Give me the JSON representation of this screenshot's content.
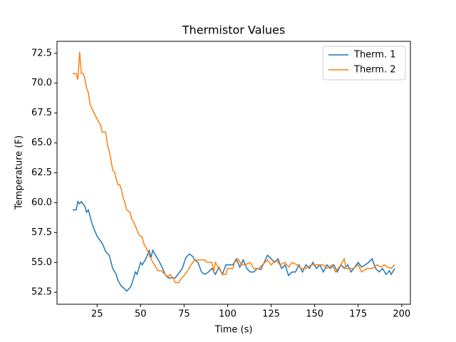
{
  "chart_data": {
    "type": "line",
    "title": "Thermistor Values",
    "x_label": "Time (s)",
    "y_label": "Temperature (F)",
    "xlim": [
      2,
      205
    ],
    "ylim": [
      51.5,
      73.5
    ],
    "xticks": [
      25,
      50,
      75,
      100,
      125,
      150,
      175,
      200
    ],
    "yticks": [
      52.5,
      {
        "value": 55,
        "label": "55.0"
      },
      57.5,
      {
        "value": 60,
        "label": "60.0"
      },
      62.5,
      {
        "value": 65,
        "label": "65.0"
      },
      67.5,
      {
        "value": 70,
        "label": "70.0"
      },
      72.5
    ],
    "grid": false,
    "legend": "upper right",
    "series": [
      {
        "name": "Therm. 1",
        "color": "#1f77b4",
        "x": [
          11,
          13,
          14,
          15,
          16,
          18,
          19,
          20,
          22,
          23,
          25,
          28,
          30,
          32,
          34,
          36,
          37,
          39,
          40,
          42,
          44,
          45,
          47,
          48,
          50,
          51,
          53,
          55,
          56,
          57,
          59,
          61,
          63,
          64,
          66,
          70,
          72,
          74,
          76,
          78,
          80,
          81,
          83,
          85,
          87,
          89,
          91,
          93,
          95,
          97,
          99,
          103,
          105,
          107,
          109,
          111,
          113,
          115,
          117,
          119,
          121,
          123,
          125,
          127,
          129,
          131,
          133,
          135,
          137,
          139,
          141,
          143,
          145,
          147,
          149,
          151,
          153,
          155,
          157,
          159,
          161,
          163,
          165,
          167,
          169,
          171,
          173,
          175,
          177,
          179,
          181,
          183,
          185,
          187,
          189,
          191,
          193,
          194,
          196
        ],
        "values": [
          59.4,
          59.4,
          60.1,
          59.9,
          60.1,
          59.7,
          59.2,
          59.4,
          58.3,
          57.9,
          57.2,
          56.6,
          55.9,
          55.6,
          54.5,
          54.0,
          53.5,
          53.0,
          52.9,
          52.6,
          52.9,
          53.2,
          54.2,
          54.0,
          55.0,
          54.8,
          55.3,
          56.0,
          55.4,
          56.0,
          55.5,
          55.0,
          54.4,
          54.0,
          53.7,
          53.7,
          54.1,
          54.5,
          55.4,
          55.7,
          55.5,
          55.2,
          55.0,
          54.2,
          54.0,
          54.2,
          54.5,
          54.0,
          54.6,
          54.0,
          54.8,
          54.8,
          55.3,
          54.6,
          55.2,
          54.5,
          54.2,
          54.2,
          54.5,
          54.4,
          55.0,
          55.6,
          55.3,
          55.0,
          55.3,
          54.5,
          54.8,
          53.9,
          54.2,
          54.2,
          54.8,
          54.2,
          54.8,
          54.5,
          55.0,
          54.5,
          54.8,
          54.2,
          54.8,
          54.5,
          54.8,
          54.2,
          54.8,
          54.5,
          54.8,
          54.2,
          54.6,
          55.0,
          54.6,
          54.8,
          55.0,
          55.3,
          54.5,
          54.2,
          54.5,
          54.0,
          54.3,
          54.0,
          54.5
        ]
      },
      {
        "name": "Therm. 2",
        "color": "#ff7f0e",
        "x": [
          11,
          13,
          14,
          15,
          16,
          17,
          18,
          19,
          20,
          21,
          23,
          25,
          27,
          28,
          30,
          31,
          32,
          33,
          34,
          35,
          36,
          37,
          38,
          39,
          40,
          41,
          42,
          44,
          45,
          46,
          48,
          49,
          51,
          52,
          54,
          55,
          57,
          58,
          60,
          62,
          64,
          66,
          67,
          69,
          70,
          72,
          73,
          75,
          77,
          79,
          81,
          87,
          88,
          91,
          92,
          93,
          95,
          97,
          99,
          100,
          103,
          104,
          106,
          108,
          110,
          113,
          115,
          118,
          120,
          123,
          125,
          128,
          130,
          133,
          135,
          137,
          140,
          142,
          145,
          148,
          155,
          157,
          160,
          162,
          165,
          167,
          168,
          172,
          175,
          177,
          180,
          183,
          186,
          188,
          190,
          192,
          194,
          196
        ],
        "values": [
          70.8,
          70.8,
          70.3,
          72.6,
          70.8,
          70.8,
          70.4,
          69.6,
          69.2,
          68.2,
          67.6,
          67.0,
          66.5,
          65.9,
          65.9,
          64.8,
          64.3,
          63.6,
          62.7,
          62.6,
          62.0,
          61.5,
          61.5,
          61.1,
          60.4,
          60.0,
          59.4,
          59.2,
          58.6,
          58.4,
          57.7,
          57.3,
          57.1,
          56.5,
          56.0,
          55.6,
          55.0,
          54.8,
          54.3,
          54.3,
          54.0,
          53.8,
          54.0,
          53.6,
          53.3,
          53.3,
          53.6,
          53.9,
          54.3,
          54.8,
          55.2,
          55.2,
          55.0,
          55.0,
          54.2,
          55.0,
          54.5,
          54.0,
          54.0,
          54.5,
          54.5,
          55.0,
          55.3,
          54.8,
          54.8,
          55.0,
          54.5,
          54.5,
          54.8,
          55.2,
          54.8,
          55.2,
          54.8,
          55.0,
          54.6,
          55.0,
          54.8,
          54.5,
          54.5,
          54.8,
          54.8,
          54.5,
          54.8,
          54.2,
          54.8,
          55.3,
          54.5,
          54.5,
          54.8,
          54.2,
          54.5,
          54.5,
          54.8,
          54.6,
          54.8,
          54.6,
          54.5,
          54.8
        ]
      }
    ]
  }
}
